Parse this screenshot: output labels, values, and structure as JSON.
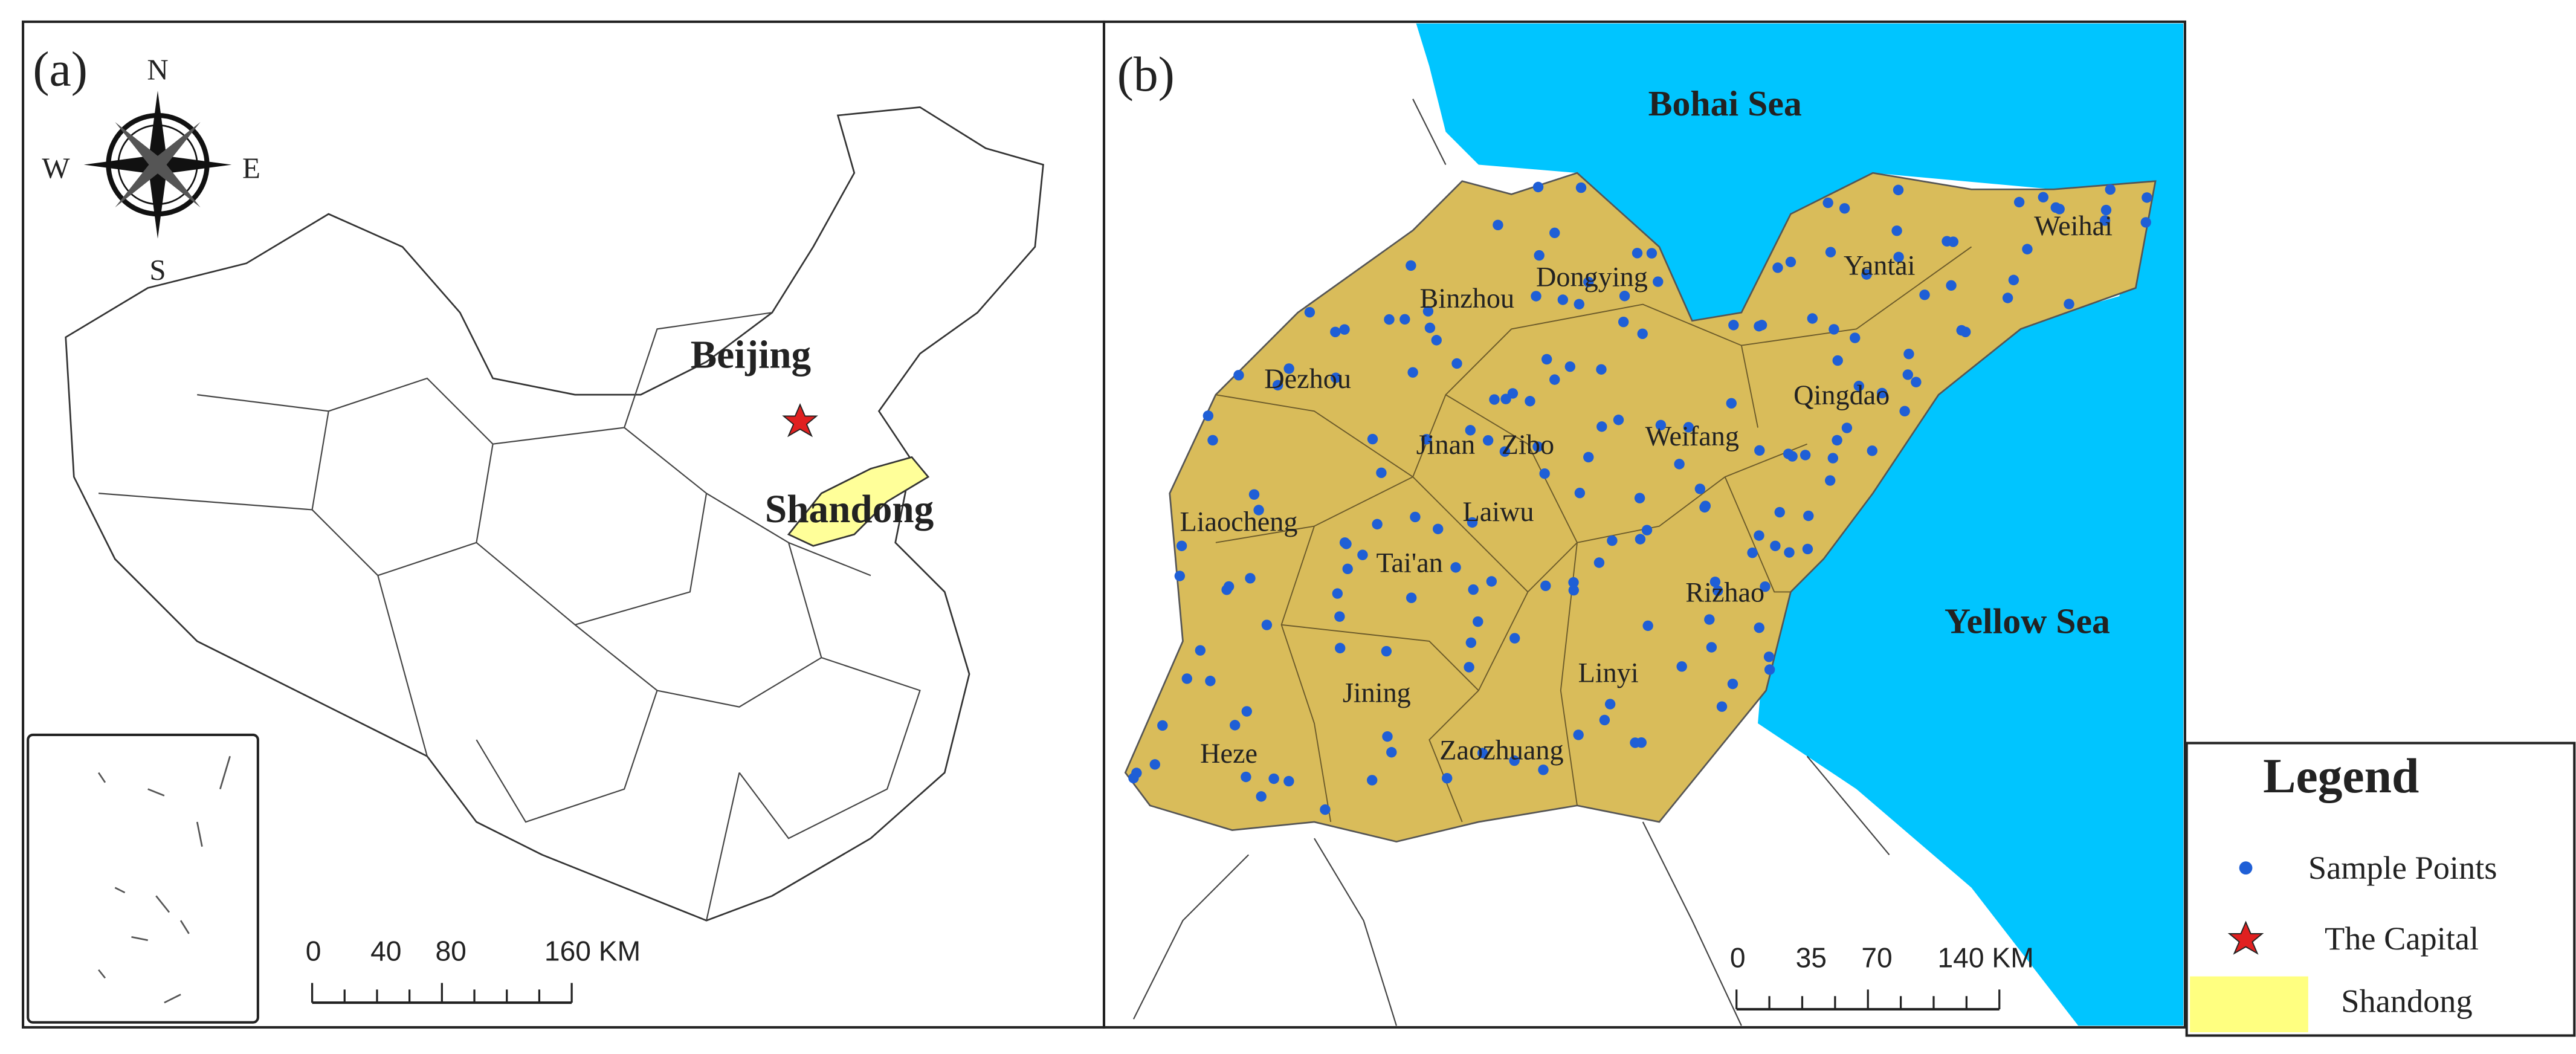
{
  "panel_a": {
    "label": "(a)",
    "compass": {
      "n": "N",
      "s": "S",
      "e": "E",
      "w": "W"
    },
    "capital": "Beijing",
    "province": "Shandong",
    "scale": [
      "0",
      "40",
      "80",
      "160 KM"
    ]
  },
  "panel_b": {
    "label": "(b)",
    "seas": [
      "Bohai Sea",
      "Yellow Sea"
    ],
    "cities": [
      "Binzhou",
      "Dongying",
      "Yantai",
      "Weihai",
      "Dezhou",
      "Qingdao",
      "Jinan",
      "Zibo",
      "Weifang",
      "Liaocheng",
      "Laiwu",
      "Tai'an",
      "Rizhao",
      "Jining",
      "Linyi",
      "Heze",
      "Zaozhuang"
    ],
    "scale": [
      "0",
      "35",
      "70",
      "140 KM"
    ]
  },
  "legend": {
    "title": "Legend",
    "items": [
      "Sample Points",
      "The Capital",
      "Shandong"
    ]
  }
}
